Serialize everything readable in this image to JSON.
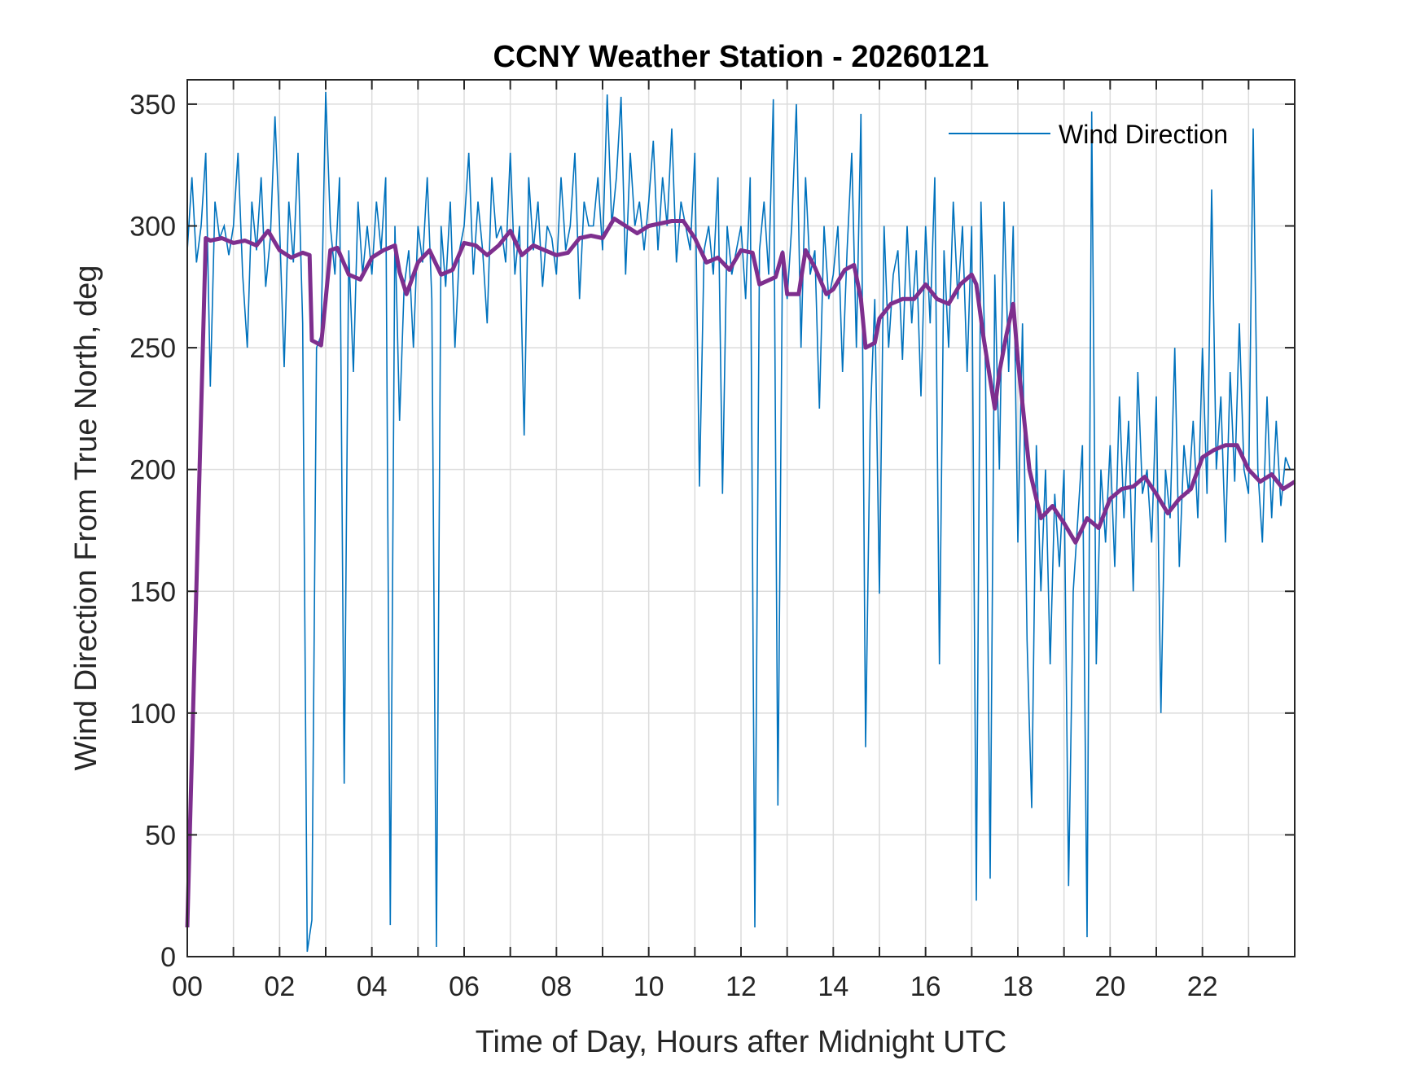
{
  "chart_data": {
    "type": "line",
    "title": "CCNY Weather Station - 20260121",
    "xlabel": "Time of Day, Hours after Midnight UTC",
    "ylabel": "Wind Direction From True North, deg",
    "xlim": [
      0,
      24
    ],
    "ylim": [
      0,
      360
    ],
    "xticks": [
      0,
      2,
      4,
      6,
      8,
      10,
      12,
      14,
      16,
      18,
      20,
      22
    ],
    "xtick_labels": [
      "00",
      "02",
      "04",
      "06",
      "08",
      "10",
      "12",
      "14",
      "16",
      "18",
      "20",
      "22"
    ],
    "yticks": [
      0,
      50,
      100,
      150,
      200,
      250,
      300,
      350
    ],
    "ytick_labels": [
      "0",
      "50",
      "100",
      "150",
      "200",
      "250",
      "300",
      "350"
    ],
    "grid": true,
    "legend_position": "top-right",
    "series": [
      {
        "name": "Wind Direction",
        "color": "#0072BD",
        "x_step_hours": 0.1,
        "values": [
          290,
          320,
          285,
          300,
          330,
          234,
          310,
          295,
          300,
          288,
          300,
          330,
          280,
          250,
          310,
          290,
          320,
          275,
          295,
          345,
          300,
          242,
          310,
          285,
          330,
          260,
          2,
          15,
          250,
          255,
          355,
          300,
          280,
          320,
          71,
          290,
          240,
          310,
          280,
          300,
          280,
          310,
          290,
          320,
          13,
          300,
          220,
          275,
          290,
          250,
          300,
          285,
          320,
          270,
          4,
          300,
          275,
          310,
          250,
          290,
          300,
          330,
          280,
          310,
          290,
          260,
          320,
          295,
          300,
          285,
          330,
          280,
          300,
          214,
          320,
          290,
          310,
          275,
          300,
          295,
          280,
          320,
          290,
          300,
          330,
          270,
          310,
          300,
          300,
          320,
          290,
          354,
          300,
          320,
          353,
          280,
          330,
          300,
          310,
          290,
          310,
          335,
          290,
          320,
          300,
          340,
          285,
          310,
          300,
          290,
          330,
          193,
          290,
          300,
          280,
          320,
          190,
          300,
          280,
          290,
          300,
          270,
          320,
          12,
          290,
          310,
          280,
          352,
          62,
          290,
          270,
          300,
          350,
          250,
          320,
          280,
          290,
          225,
          300,
          270,
          280,
          300,
          240,
          290,
          330,
          250,
          346,
          86,
          220,
          270,
          149,
          300,
          250,
          280,
          290,
          245,
          300,
          260,
          290,
          230,
          300,
          260,
          320,
          120,
          290,
          250,
          310,
          270,
          300,
          240,
          300,
          23,
          310,
          240,
          32,
          280,
          200,
          310,
          240,
          300,
          170,
          260,
          130,
          61,
          210,
          150,
          200,
          120,
          190,
          160,
          200,
          29,
          150,
          180,
          210,
          8,
          347,
          120,
          200,
          170,
          210,
          160,
          230,
          180,
          220,
          150,
          240,
          190,
          200,
          170,
          230,
          100,
          200,
          180,
          250,
          160,
          210,
          190,
          220,
          180,
          250,
          190,
          315,
          200,
          230,
          170,
          240,
          195,
          260,
          200,
          190,
          340,
          200,
          170,
          230,
          180,
          220,
          185,
          205,
          200
        ]
      },
      {
        "color": "#7E2F8E",
        "x": [
          0,
          0.4,
          0.5,
          0.75,
          1,
          1.25,
          1.5,
          1.75,
          2,
          2.25,
          2.5,
          2.65,
          2.7,
          2.9,
          3,
          3.1,
          3.25,
          3.5,
          3.75,
          4,
          4.25,
          4.5,
          4.6,
          4.75,
          5,
          5.25,
          5.5,
          5.75,
          6,
          6.25,
          6.5,
          6.75,
          7,
          7.25,
          7.5,
          7.75,
          8,
          8.25,
          8.5,
          8.75,
          9,
          9.25,
          9.5,
          9.75,
          10,
          10.25,
          10.5,
          10.75,
          11,
          11.25,
          11.5,
          11.75,
          12,
          12.25,
          12.4,
          12.75,
          12.9,
          13,
          13.25,
          13.4,
          13.6,
          13.85,
          14,
          14.25,
          14.45,
          14.6,
          14.7,
          14.9,
          15,
          15.25,
          15.5,
          15.75,
          16,
          16.25,
          16.5,
          16.75,
          17,
          17.1,
          17.25,
          17.5,
          17.6,
          17.75,
          17.9,
          18,
          18.25,
          18.5,
          18.75,
          19,
          19.25,
          19.5,
          19.75,
          20,
          20.25,
          20.5,
          20.75,
          21,
          21.25,
          21.5,
          21.75,
          22,
          22.25,
          22.5,
          22.75,
          23,
          23.25,
          23.5,
          23.75,
          24
        ],
        "y": [
          12,
          295,
          294,
          295,
          293,
          294,
          292,
          298,
          290,
          287,
          289,
          288,
          253,
          251,
          270,
          290,
          291,
          280,
          278,
          287,
          290,
          292,
          281,
          272,
          285,
          290,
          280,
          282,
          293,
          292,
          288,
          292,
          298,
          288,
          292,
          290,
          288,
          289,
          295,
          296,
          295,
          303,
          300,
          297,
          300,
          301,
          302,
          302,
          295,
          285,
          287,
          282,
          290,
          289,
          276,
          279,
          289,
          272,
          272,
          290,
          283,
          272,
          274,
          282,
          284,
          270,
          250,
          252,
          262,
          268,
          270,
          270,
          276,
          270,
          268,
          276,
          280,
          276,
          255,
          225,
          240,
          255,
          268,
          245,
          200,
          180,
          185,
          178,
          170,
          180,
          176,
          188,
          192,
          193,
          197,
          190,
          182,
          188,
          192,
          205,
          208,
          210,
          210,
          200,
          195,
          198,
          192,
          195
        ]
      }
    ]
  }
}
